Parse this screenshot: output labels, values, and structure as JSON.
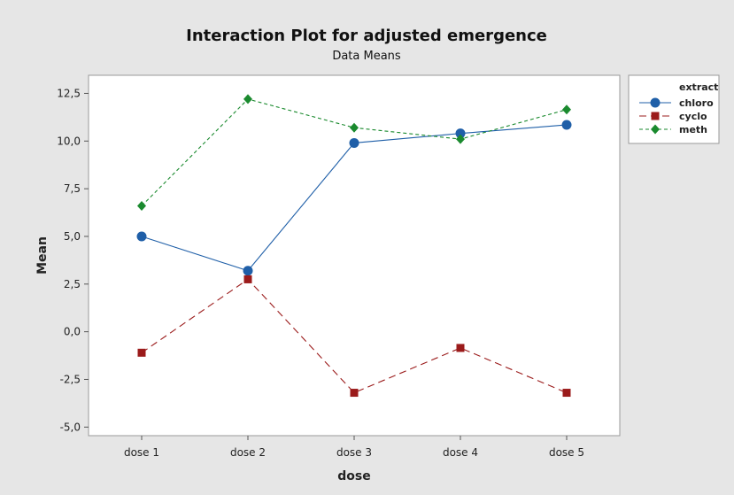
{
  "chart_data": {
    "type": "line",
    "title": "Interaction Plot for adjusted emergence",
    "subtitle": "Data Means",
    "xlabel": "dose",
    "ylabel": "Mean",
    "categories": [
      "dose 1",
      "dose 2",
      "dose 3",
      "dose 4",
      "dose 5"
    ],
    "ylim": [
      -5.0,
      12.5
    ],
    "yticks": [
      "-5,0",
      "-2,5",
      "0,0",
      "2,5",
      "5,0",
      "7,5",
      "10,0",
      "12,5"
    ],
    "ytick_values": [
      -5.0,
      -2.5,
      0.0,
      2.5,
      5.0,
      7.5,
      10.0,
      12.5
    ],
    "grid": false,
    "legend": {
      "title": "extract",
      "placement": "right"
    },
    "series": [
      {
        "name": "chloro",
        "values": [
          5.0,
          3.2,
          9.9,
          10.4,
          10.85
        ],
        "color": "#1f5fa8",
        "marker": "circle",
        "dash": "solid"
      },
      {
        "name": "cyclo",
        "values": [
          -1.1,
          2.75,
          -3.2,
          -0.85,
          -3.2
        ],
        "color": "#9b1b1b",
        "marker": "square",
        "dash": "dash"
      },
      {
        "name": "meth",
        "values": [
          6.6,
          12.2,
          10.7,
          10.1,
          11.65
        ],
        "color": "#1a8a2e",
        "marker": "diamond",
        "dash": "dotted"
      }
    ]
  },
  "colors": {
    "frame_background": "#e6e6e6",
    "plot_background": "#ffffff"
  }
}
